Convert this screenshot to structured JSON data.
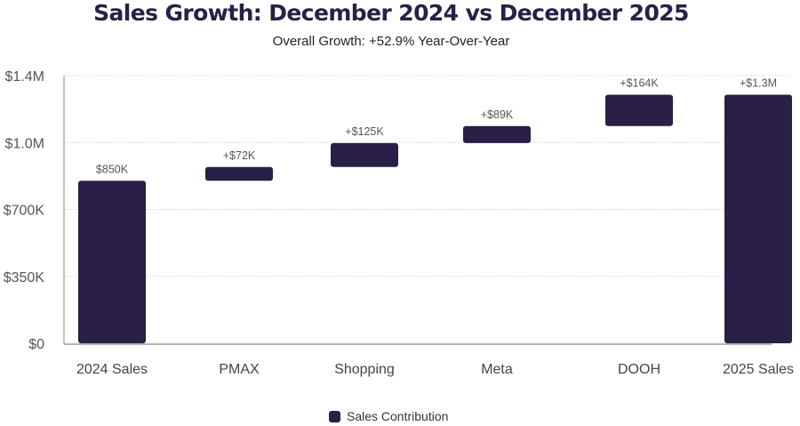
{
  "chart_data": {
    "type": "bar",
    "subtype": "waterfall",
    "title": "Sales Growth: December 2024 vs December 2025",
    "subtitle": "Overall Growth: +52.9% Year-Over-Year",
    "xlabel": "",
    "ylabel": "",
    "ylim": [
      0,
      1400000
    ],
    "yticks": [
      {
        "value": 0,
        "label": "$0"
      },
      {
        "value": 350000,
        "label": "$350K"
      },
      {
        "value": 700000,
        "label": "$700K"
      },
      {
        "value": 1050000,
        "label": "$1.0M"
      },
      {
        "value": 1400000,
        "label": "$1.4M"
      }
    ],
    "grid": true,
    "categories": [
      "2024 Sales",
      "PMAX",
      "Shopping",
      "Meta",
      "DOOH",
      "2025 Sales"
    ],
    "series": [
      {
        "name": "Sales Contribution",
        "color": "#2a1f47",
        "bars": [
          {
            "category": "2024 Sales",
            "kind": "total",
            "start": 0,
            "end": 850000,
            "label": "$850K"
          },
          {
            "category": "PMAX",
            "kind": "delta",
            "start": 850000,
            "end": 922000,
            "label": "+$72K"
          },
          {
            "category": "Shopping",
            "kind": "delta",
            "start": 922000,
            "end": 1047000,
            "label": "+$125K"
          },
          {
            "category": "Meta",
            "kind": "delta",
            "start": 1047000,
            "end": 1136000,
            "label": "+$89K"
          },
          {
            "category": "DOOH",
            "kind": "delta",
            "start": 1136000,
            "end": 1300000,
            "label": "+$164K"
          },
          {
            "category": "2025 Sales",
            "kind": "total",
            "start": 0,
            "end": 1300000,
            "label": "+$1.3M"
          }
        ]
      }
    ],
    "legend": {
      "position": "bottom-center",
      "entries": [
        "Sales Contribution"
      ]
    }
  }
}
